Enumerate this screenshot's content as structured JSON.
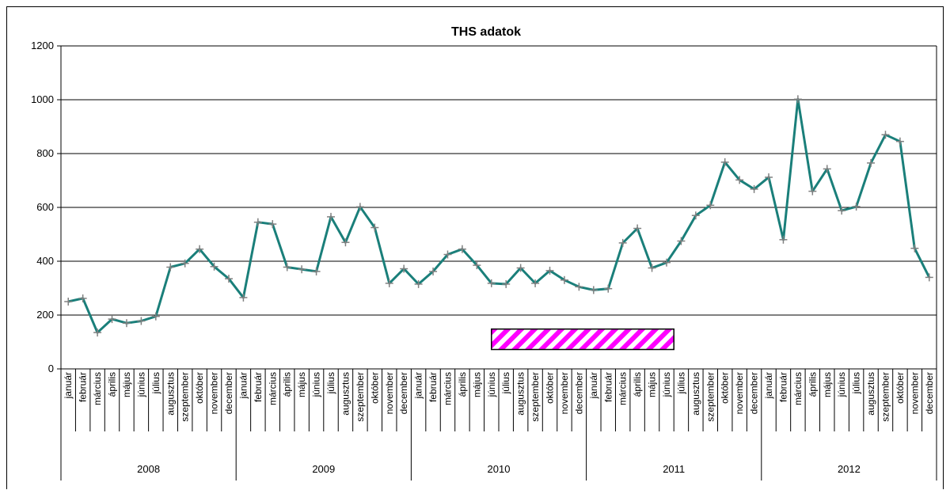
{
  "chart_data": {
    "type": "line",
    "title": "THS adatok",
    "xlabel": "",
    "ylabel": "",
    "ylim": [
      0,
      1200
    ],
    "yticks": [
      0,
      200,
      400,
      600,
      800,
      1000,
      1200
    ],
    "grid": true,
    "legend": "none",
    "line_color": "#1a7f7a",
    "marker_color": "#808080",
    "years": [
      "2008",
      "2009",
      "2010",
      "2011",
      "2012"
    ],
    "months": [
      "január",
      "február",
      "március",
      "április",
      "május",
      "június",
      "július",
      "augusztus",
      "szeptember",
      "október",
      "november",
      "december"
    ],
    "series": [
      {
        "values": [
          250,
          262,
          135,
          185,
          170,
          178,
          195,
          378,
          392,
          445,
          380,
          335,
          265,
          545,
          538,
          378,
          370,
          362,
          565,
          470,
          602,
          525,
          318,
          372,
          315,
          362,
          425,
          445,
          385,
          318,
          315,
          375,
          318,
          365,
          330,
          305,
          293,
          298,
          468,
          522,
          375,
          395,
          475,
          570,
          608,
          768,
          702,
          668,
          712,
          480,
          1002,
          660,
          743,
          588,
          603,
          765,
          870,
          845,
          448,
          340
        ]
      }
    ],
    "annotation_box": {
      "start_index": 29,
      "end_index": 41,
      "y_low": 72,
      "y_high": 148,
      "fill": "#ff00ff",
      "pattern": "diagonal-stripes"
    }
  }
}
